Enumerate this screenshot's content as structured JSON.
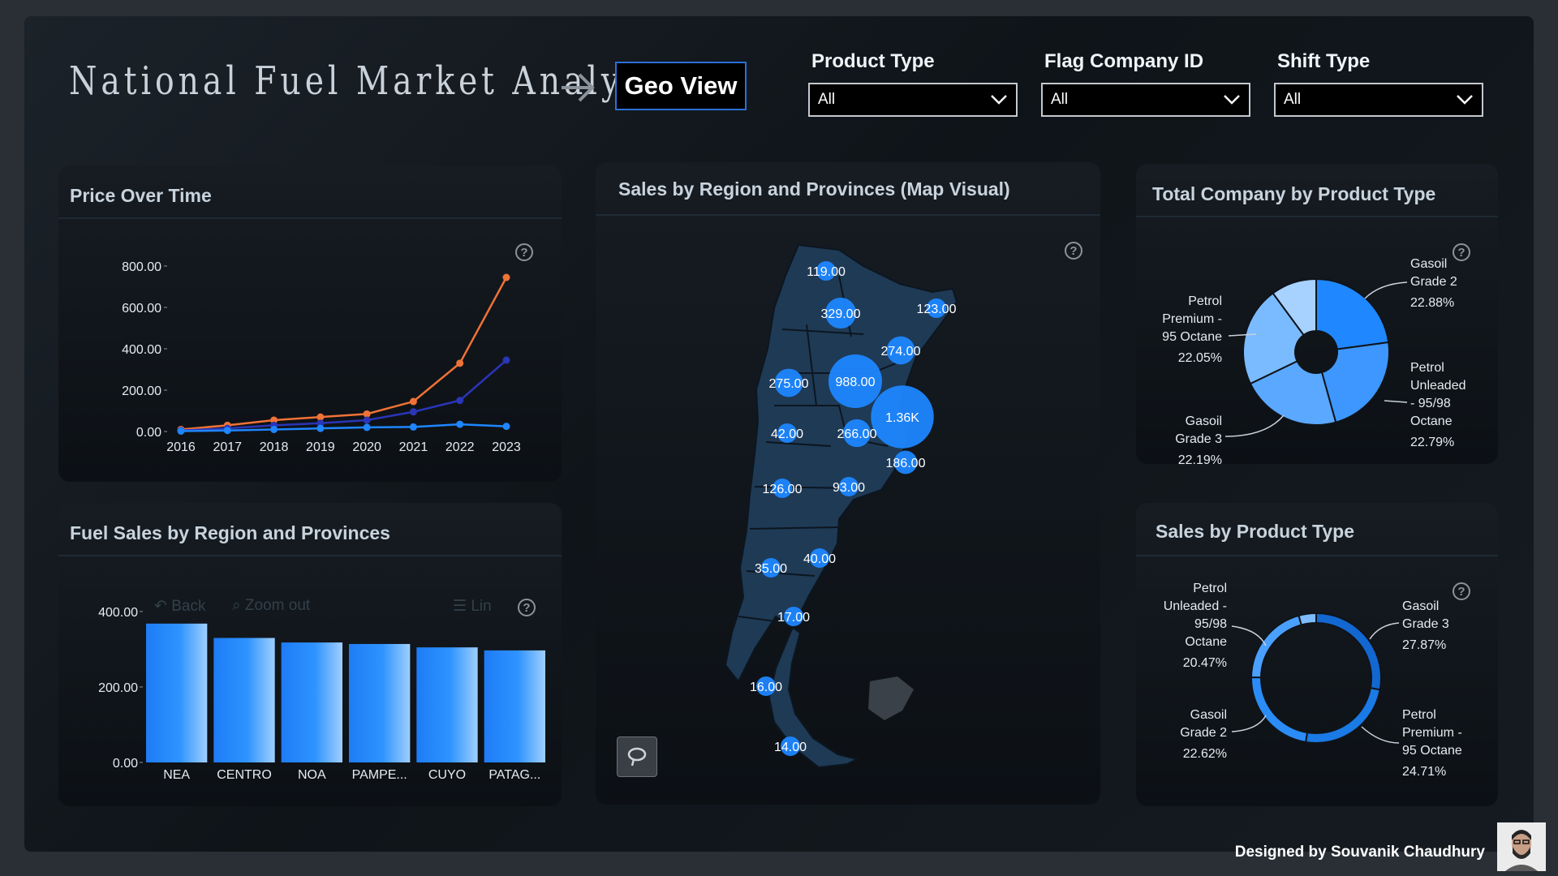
{
  "header": {
    "title": "National Fuel Market Analysis",
    "geo_view_label": "Geo View"
  },
  "filters": [
    {
      "label": "Product Type",
      "value": "All"
    },
    {
      "label": "Flag Company ID",
      "value": "All"
    },
    {
      "label": "Shift Type",
      "value": "All"
    }
  ],
  "price_panel": {
    "title": "Price Over Time"
  },
  "region_bar_panel": {
    "title": "Fuel Sales by Region and Provinces",
    "toolbar": {
      "back": "Back",
      "zoom_out": "Zoom out",
      "lin": "Lin"
    }
  },
  "map_panel": {
    "title": "Sales by Region and Provinces (Map Visual)"
  },
  "company_panel": {
    "title": "Total Company by Product Type"
  },
  "product_panel": {
    "title": "Sales by Product Type"
  },
  "footer": {
    "designer": "Designed by Souvanik Chaudhury"
  },
  "colors": {
    "orange": "#f07236",
    "navy": "#2a35b8",
    "blue": "#1e86ff",
    "accent": "#2b6fd6"
  },
  "chart_data": [
    {
      "type": "line",
      "title": "Price Over Time",
      "x": [
        "2016",
        "2017",
        "2018",
        "2019",
        "2020",
        "2021",
        "2022",
        "2023"
      ],
      "ylim": [
        0,
        800
      ],
      "y_ticks": [
        "800.00",
        "600.00",
        "400.00",
        "200.00",
        "0.00"
      ],
      "series": [
        {
          "color": "#f07236",
          "values": [
            10,
            30,
            55,
            70,
            85,
            145,
            330,
            745
          ]
        },
        {
          "color": "#2a35b8",
          "values": [
            5,
            15,
            30,
            40,
            55,
            95,
            150,
            345
          ]
        },
        {
          "color": "#1e86ff",
          "values": [
            2,
            5,
            10,
            15,
            20,
            22,
            35,
            25
          ]
        }
      ]
    },
    {
      "type": "bar",
      "title": "Fuel Sales by Region and Provinces",
      "categories": [
        "NEA",
        "CENTRO",
        "NOA",
        "PAMPE...",
        "CUYO",
        "PATAG..."
      ],
      "values": [
        368,
        330,
        318,
        314,
        305,
        297
      ],
      "ylim": [
        0,
        430
      ],
      "y_ticks": [
        "400.00",
        "200.00",
        "0.00"
      ]
    },
    {
      "type": "pie",
      "title": "Total Company by Product Type",
      "slices": [
        {
          "label": "Gasoil Grade 2",
          "value": 22.88,
          "display": "22.88%",
          "color": "#1f87ff"
        },
        {
          "label": "Petrol Unleaded - 95/98 Octane",
          "value": 22.79,
          "display": "22.79%",
          "color": "#3d97ff"
        },
        {
          "label": "Gasoil Grade 3",
          "value": 22.19,
          "display": "22.19%",
          "color": "#5aa8ff"
        },
        {
          "label": "Petrol Premium - 95 Octane",
          "value": 22.05,
          "display": "22.05%",
          "color": "#7abbff"
        },
        {
          "label": "Other",
          "value": 10.09,
          "display": "",
          "color": "#a7d1ff"
        }
      ]
    },
    {
      "type": "pie",
      "title": "Sales by Product Type",
      "slices": [
        {
          "label": "Gasoil Grade 3",
          "value": 27.87,
          "display": "27.87%",
          "color": "#1267d1"
        },
        {
          "label": "Petrol Premium - 95 Octane",
          "value": 24.71,
          "display": "24.71%",
          "color": "#1a7ae6"
        },
        {
          "label": "Gasoil Grade 2",
          "value": 22.62,
          "display": "22.62%",
          "color": "#2b8cf7"
        },
        {
          "label": "Petrol Unleaded - 95/98 Octane",
          "value": 20.47,
          "display": "20.47%",
          "color": "#4aa0ff"
        },
        {
          "label": "Other",
          "value": 4.33,
          "display": "",
          "color": "#7fbcff"
        }
      ]
    }
  ],
  "map_bubbles": [
    {
      "label": "119.00",
      "value": 119
    },
    {
      "label": "329.00",
      "value": 329
    },
    {
      "label": "123.00",
      "value": 123
    },
    {
      "label": "274.00",
      "value": 274
    },
    {
      "label": "275.00",
      "value": 275
    },
    {
      "label": "988.00",
      "value": 988
    },
    {
      "label": "1.36K",
      "value": 1360
    },
    {
      "label": "42.00",
      "value": 42
    },
    {
      "label": "266.00",
      "value": 266
    },
    {
      "label": "186.00",
      "value": 186
    },
    {
      "label": "126.00",
      "value": 126
    },
    {
      "label": "93.00",
      "value": 93
    },
    {
      "label": "35.00",
      "value": 35
    },
    {
      "label": "40.00",
      "value": 40
    },
    {
      "label": "17.00",
      "value": 17
    },
    {
      "label": "16.00",
      "value": 16
    },
    {
      "label": "14.00",
      "value": 14
    }
  ]
}
